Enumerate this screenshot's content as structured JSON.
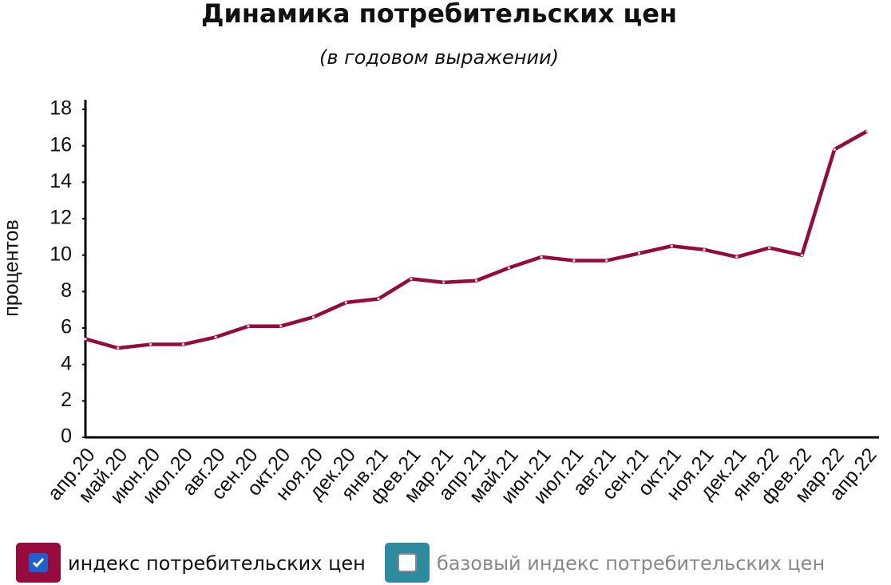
{
  "chart_data": {
    "type": "line",
    "title": "Динамика потребительских цен",
    "subtitle": "(в годовом выражении)",
    "y_label": "процентов",
    "categories": [
      "апр.20",
      "май.20",
      "июн.20",
      "июл.20",
      "авг.20",
      "сен.20",
      "окт.20",
      "ноя.20",
      "дек.20",
      "янв.21",
      "фев.21",
      "мар.21",
      "апр.21",
      "май.21",
      "июн.21",
      "июл.21",
      "авг.21",
      "сен.21",
      "окт.21",
      "ноя.21",
      "дек.21",
      "янв.22",
      "фев.22",
      "мар.22",
      "апр.22"
    ],
    "series": [
      {
        "name": "индекс потребительских цен",
        "color": "#960a3c",
        "checked": true,
        "values": [
          5.4,
          4.9,
          5.1,
          5.1,
          5.5,
          6.1,
          6.1,
          6.6,
          7.4,
          7.6,
          8.7,
          8.5,
          8.6,
          9.3,
          9.9,
          9.7,
          9.7,
          10.1,
          10.5,
          10.3,
          9.9,
          10.4,
          10.0,
          15.8,
          16.8
        ]
      }
    ],
    "inactive_series": [
      {
        "name": "базовый индекс потребительских цен",
        "color": "#2e8a9e",
        "checked": false
      }
    ],
    "ylim": [
      0,
      18
    ],
    "yticks": [
      0,
      2,
      4,
      6,
      8,
      10,
      12,
      14,
      16,
      18
    ],
    "grid": false
  }
}
